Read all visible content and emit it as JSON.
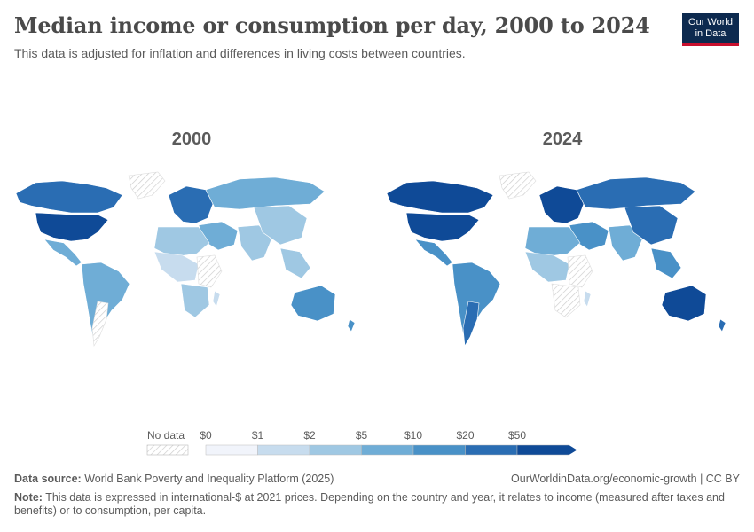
{
  "header": {
    "title": "Median income or consumption per day, 2000 to 2024",
    "subtitle": "This data is adjusted for inflation and differences in living costs between countries."
  },
  "logo": {
    "line1": "Our World",
    "line2": "in Data"
  },
  "maps": [
    {
      "year_label": "2000"
    },
    {
      "year_label": "2024"
    }
  ],
  "legend": {
    "no_data_label": "No data",
    "bins": [
      "$0",
      "$1",
      "$2",
      "$5",
      "$10",
      "$20",
      "$50"
    ],
    "colors": [
      "#f1f4fb",
      "#c7dcee",
      "#9fc8e3",
      "#6fadd6",
      "#4991c7",
      "#2a6db3",
      "#0f4a97"
    ]
  },
  "footer": {
    "source_label": "Data source:",
    "source_text": "World Bank Poverty and Inequality Platform (2025)",
    "credit": "OurWorldinData.org/economic-growth | CC BY",
    "note_label": "Note:",
    "note_text": "This data is expressed in international-$ at 2021 prices. Depending on the country and year, it relates to income (measured after taxes and benefits) or to consumption, per capita."
  }
}
